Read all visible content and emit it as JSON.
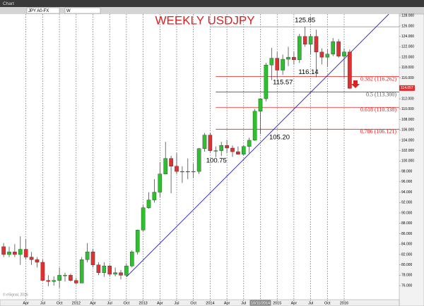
{
  "chart_data": {
    "type": "candlestick",
    "title": "WEEKLY USDJPY",
    "toolbar": {
      "window": "Chart",
      "symbol": "JPY A0-FX",
      "interval": "W"
    },
    "footer": "© eSignal, 2016",
    "x": [
      "2010-12",
      "2011-01",
      "2011-02",
      "2011-03",
      "2011-04",
      "2011-05",
      "2011-06",
      "2011-07",
      "2011-08",
      "2011-09",
      "2011-10",
      "2011-11",
      "2011-12",
      "2012-01",
      "2012-02",
      "2012-03",
      "2012-04",
      "2012-05",
      "2012-06",
      "2012-07",
      "2012-08",
      "2012-09",
      "2012-10",
      "2012-11",
      "2012-12",
      "2013-01",
      "2013-02",
      "2013-03",
      "2013-04",
      "2013-05",
      "2013-06",
      "2013-07",
      "2013-08",
      "2013-09",
      "2013-10",
      "2013-11",
      "2013-12",
      "2014-01",
      "2014-02",
      "2014-03",
      "2014-04",
      "2014-05",
      "2014-06",
      "2014-07",
      "2014-08",
      "2014-09",
      "2014-10",
      "2014-11",
      "2014-12",
      "2015-01",
      "2015-02",
      "2015-03",
      "2015-04",
      "2015-05",
      "2015-06",
      "2015-07",
      "2015-08",
      "2015-09",
      "2015-10",
      "2015-11",
      "2015-12",
      "2016-01",
      "2016-02"
    ],
    "open": [
      83.5,
      82,
      82.5,
      82,
      83,
      81.5,
      81,
      80.5,
      77,
      76.8,
      77,
      78,
      78,
      77,
      76.5,
      81,
      82.5,
      80,
      78.5,
      79.8,
      78.2,
      78.5,
      78,
      79.8,
      82.5,
      86.7,
      91,
      92.5,
      94,
      97.5,
      100.5,
      99,
      98,
      98,
      98,
      98,
      102.4,
      105,
      102,
      102,
      103,
      102.5,
      101.8,
      101.3,
      102.8,
      104,
      109.6,
      112,
      118.5,
      119.8,
      117.5,
      119.6,
      120,
      119.5,
      124,
      122.5,
      124,
      121,
      120,
      120.6,
      123,
      120.2,
      121
    ],
    "high": [
      84.2,
      83.5,
      84,
      85.5,
      85,
      82.5,
      81.5,
      81,
      78,
      77.8,
      79.5,
      78.5,
      78.3,
      77.5,
      81.5,
      84.2,
      83,
      80.5,
      80.5,
      80,
      79.5,
      79,
      80.3,
      82.8,
      86.8,
      91.5,
      94,
      96.5,
      99.8,
      103.7,
      101,
      101.5,
      99,
      100.5,
      99.5,
      102.5,
      105.4,
      105.4,
      102.8,
      103.7,
      104.1,
      103,
      102.8,
      103.1,
      104.5,
      110,
      112,
      118.9,
      121.8,
      121,
      120.5,
      122,
      121,
      124.5,
      125.85,
      124.5,
      125.3,
      121.7,
      121.5,
      123.7,
      123.5,
      121.7,
      121.5
    ],
    "low": [
      81.5,
      81.5,
      81.5,
      80,
      81,
      80,
      79.5,
      77,
      75.9,
      76,
      75.6,
      76.8,
      76.8,
      76.2,
      76.5,
      80.5,
      79.5,
      78,
      77.7,
      77.8,
      77.8,
      77.2,
      77.7,
      79.5,
      82,
      86.5,
      90.8,
      92,
      93,
      97.5,
      93.8,
      97.5,
      95.8,
      96.5,
      96.7,
      97.5,
      101.8,
      101.7,
      100.75,
      101,
      101.5,
      100.8,
      101.2,
      101,
      101.5,
      103.9,
      105.2,
      111.5,
      115.57,
      115.9,
      116.6,
      118.3,
      118.6,
      118.9,
      122,
      120.5,
      116.14,
      118.6,
      118.1,
      120.2,
      119.9,
      115.98,
      113.9
    ],
    "close": [
      82,
      82.5,
      82,
      83,
      81.5,
      81,
      80.5,
      77,
      76.8,
      77,
      78,
      78,
      77,
      76.5,
      81,
      82.5,
      80,
      78.5,
      79.8,
      78.2,
      78.5,
      78,
      79.8,
      82.5,
      86.7,
      91,
      92.5,
      94,
      97.5,
      100.5,
      99,
      98,
      98,
      98,
      98,
      102.4,
      105,
      102,
      102,
      103,
      102.5,
      101.8,
      101.3,
      102.8,
      104,
      109.6,
      112,
      118.5,
      119.8,
      117.5,
      119.6,
      120,
      119.5,
      124,
      122.5,
      124,
      121,
      120,
      120.6,
      123,
      120.2,
      121,
      114
    ],
    "up_color": "#2dbf2d",
    "down_color": "#e03030",
    "ylim": [
      73.3,
      128.3
    ],
    "yticks": [
      {
        "value": 76,
        "label": "76.000"
      },
      {
        "value": 78,
        "label": "78.000"
      },
      {
        "value": 80,
        "label": "80.000"
      },
      {
        "value": 82,
        "label": "82.000"
      },
      {
        "value": 84,
        "label": "84.000"
      },
      {
        "value": 86,
        "label": "86.000"
      },
      {
        "value": 88,
        "label": "88.000"
      },
      {
        "value": 90,
        "label": "90.000"
      },
      {
        "value": 92,
        "label": "92.000"
      },
      {
        "value": 94,
        "label": "94.000"
      },
      {
        "value": 96,
        "label": "96.000"
      },
      {
        "value": 98,
        "label": "98.000"
      },
      {
        "value": 100,
        "label": "100.000"
      },
      {
        "value": 102,
        "label": "102.000"
      },
      {
        "value": 104,
        "label": "104.000"
      },
      {
        "value": 106,
        "label": "106.000"
      },
      {
        "value": 108,
        "label": "108.000"
      },
      {
        "value": 110,
        "label": "110.000"
      },
      {
        "value": 112,
        "label": "112.000"
      },
      {
        "value": 114,
        "label": "114.000"
      },
      {
        "value": 116,
        "label": "116.000"
      },
      {
        "value": 118,
        "label": "118.000"
      },
      {
        "value": 120,
        "label": "120.000"
      },
      {
        "value": 122,
        "label": "122.000"
      },
      {
        "value": 124,
        "label": "124.000"
      },
      {
        "value": 126,
        "label": "126.000"
      },
      {
        "value": 128,
        "label": "128.000"
      }
    ],
    "xticks": [
      {
        "value": "2011-04",
        "label": "Apr"
      },
      {
        "value": "2011-07",
        "label": "Jul"
      },
      {
        "value": "2011-10",
        "label": "Oct"
      },
      {
        "value": "2012-01",
        "label": "2012"
      },
      {
        "value": "2012-04",
        "label": "Apr"
      },
      {
        "value": "2012-07",
        "label": "Jul"
      },
      {
        "value": "2012-10",
        "label": "Oct"
      },
      {
        "value": "2013-01",
        "label": "2013"
      },
      {
        "value": "2013-04",
        "label": "Apr"
      },
      {
        "value": "2013-07",
        "label": "Jul"
      },
      {
        "value": "2013-10",
        "label": "Oct"
      },
      {
        "value": "2014-01",
        "label": "2014"
      },
      {
        "value": "2014-04",
        "label": "Apr"
      },
      {
        "value": "2014-07",
        "label": "Jul"
      },
      {
        "value": "2014-10",
        "label": "10/11/2014"
      },
      {
        "value": "2015-01",
        "label": "2015"
      },
      {
        "value": "2015-04",
        "label": "Apr"
      },
      {
        "value": "2015-07",
        "label": "Jul"
      },
      {
        "value": "2015-10",
        "label": "Oct"
      },
      {
        "value": "2016-01",
        "label": "2016"
      }
    ],
    "grid": "x",
    "last_price": {
      "value": 114.057,
      "label": "114.057"
    },
    "levels": [
      {
        "value": 125.85,
        "from": "2014-01",
        "color": "#9a9a9a"
      },
      {
        "value": 116.262,
        "label": "0.382 (116.262)",
        "from": "2014-02",
        "color": "#e02020"
      },
      {
        "value": 113.3,
        "label": "0.5 (113.300)",
        "from": "2014-02",
        "color": "#555555"
      },
      {
        "value": 110.338,
        "label": "0.618 (110.338)",
        "from": "2014-02",
        "color": "#e02020"
      },
      {
        "value": 106.121,
        "label": "0.786 (106.121)",
        "from": "2014-02",
        "color": "#e02020"
      }
    ],
    "trendline": {
      "x": [
        "2012-10",
        "2016-09"
      ],
      "y": [
        77.7,
        128.3
      ],
      "color": "#2020c0"
    },
    "annotations": [
      {
        "text": "125.85",
        "x": "2015-06",
        "y": 125.85
      },
      {
        "text": "116.14",
        "x": "2015-08",
        "y": 116.14
      },
      {
        "text": "115.57",
        "x": "2014-12",
        "y": 115.57
      },
      {
        "text": "105.20",
        "x": "2014-10",
        "y": 105.2
      },
      {
        "text": "100.75",
        "x": "2014-02",
        "y": 100.75
      }
    ]
  }
}
